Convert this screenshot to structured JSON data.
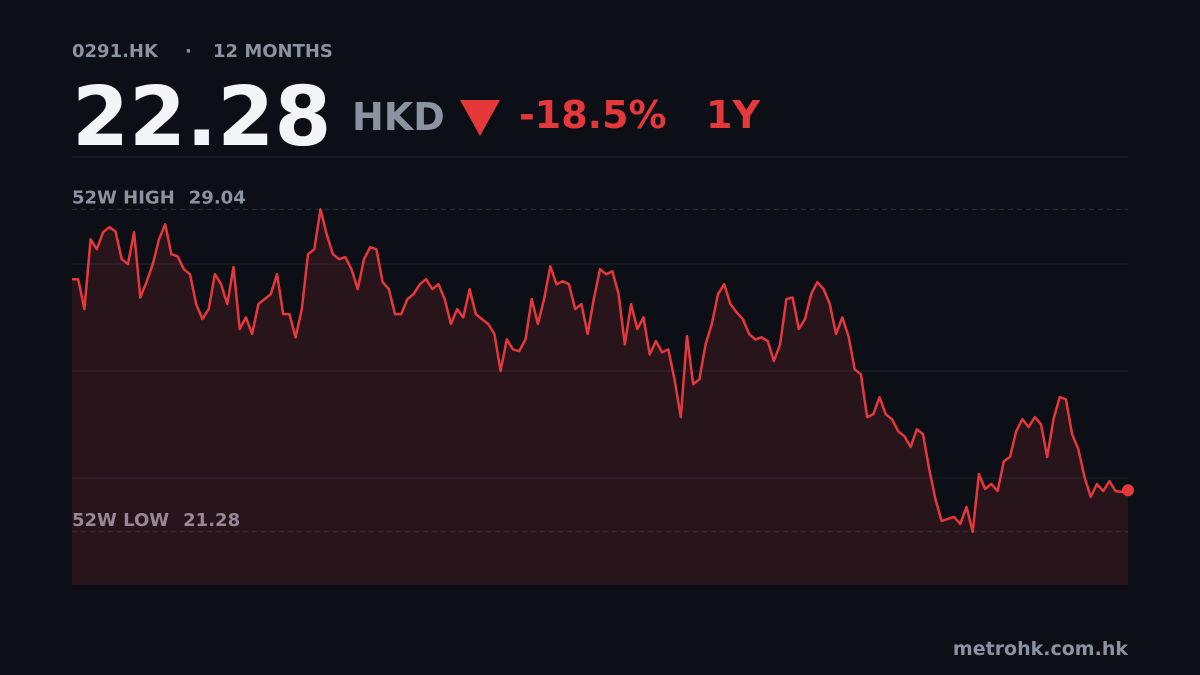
{
  "chart_data": {
    "type": "line",
    "ticker": "0291.HK",
    "separator": "·",
    "period": "12 MONTHS",
    "price": 22.28,
    "currency": "HKD",
    "change": {
      "value": -18.5,
      "label": "-18.5%"
    },
    "range_label": "1Y",
    "high": {
      "label": "52W HIGH",
      "value": 29.04
    },
    "low": {
      "label": "52W LOW",
      "value": 21.28
    },
    "source": "metrohk.com.hk",
    "color": "#e5383b",
    "up_color": "#2ecc71",
    "ylim": [
      20,
      30.3
    ],
    "values": [
      27.36,
      27.36,
      26.64,
      28.32,
      28.08,
      28.49,
      28.61,
      28.51,
      27.84,
      27.72,
      28.49,
      26.92,
      27.29,
      27.72,
      28.32,
      28.68,
      27.96,
      27.91,
      27.6,
      27.48,
      26.76,
      26.4,
      26.64,
      27.48,
      27.24,
      26.76,
      27.65,
      26.16,
      26.44,
      26.04,
      26.76,
      26.88,
      27.0,
      27.48,
      26.52,
      26.52,
      25.96,
      26.64,
      27.96,
      28.08,
      29.04,
      28.44,
      27.96,
      27.84,
      27.89,
      27.6,
      27.12,
      27.84,
      28.13,
      28.08,
      27.29,
      27.12,
      26.52,
      26.52,
      26.88,
      27.0,
      27.24,
      27.36,
      27.12,
      27.24,
      26.88,
      26.28,
      26.64,
      26.44,
      27.12,
      26.52,
      26.4,
      26.28,
      26.04,
      25.15,
      25.91,
      25.67,
      25.63,
      25.91,
      26.88,
      26.28,
      26.88,
      27.67,
      27.24,
      27.31,
      27.24,
      26.64,
      26.76,
      26.04,
      26.88,
      27.6,
      27.48,
      27.55,
      27.0,
      25.79,
      26.76,
      26.16,
      26.44,
      25.55,
      25.87,
      25.6,
      25.67,
      24.95,
      24.04,
      25.99,
      24.83,
      24.95,
      25.79,
      26.28,
      27.0,
      27.24,
      26.76,
      26.56,
      26.4,
      26.04,
      25.91,
      25.96,
      25.87,
      25.39,
      25.79,
      26.88,
      26.92,
      26.16,
      26.4,
      27.0,
      27.29,
      27.12,
      26.76,
      26.04,
      26.44,
      25.99,
      25.19,
      25.07,
      24.04,
      24.11,
      24.52,
      24.11,
      23.99,
      23.7,
      23.58,
      23.32,
      23.75,
      23.63,
      22.79,
      22.07,
      21.54,
      21.59,
      21.64,
      21.47,
      21.88,
      21.28,
      22.67,
      22.31,
      22.43,
      22.26,
      22.98,
      23.08,
      23.7,
      23.99,
      23.8,
      24.04,
      23.87,
      23.08,
      23.99,
      24.52,
      24.47,
      23.63,
      23.27,
      22.6,
      22.12,
      22.43,
      22.26,
      22.5,
      22.26,
      22.24,
      22.28
    ]
  }
}
